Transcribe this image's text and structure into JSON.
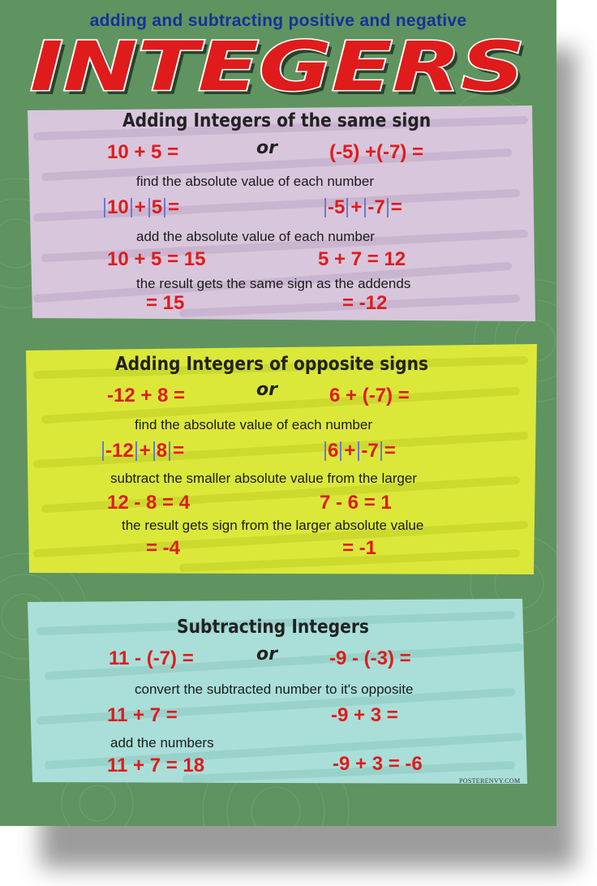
{
  "subtitle": "adding and subtracting positive and negative",
  "title": "INTEGERS",
  "credit": "POSTERENVY.COM",
  "colors": {
    "background": "#5f9460",
    "title_fill": "#e01b1b",
    "subtitle": "#1a2f9a",
    "equation": "#e01b1b",
    "panel_1": "#d8c6dc",
    "panel_2": "#dbe83a",
    "panel_3": "#a9dfd8"
  },
  "sections": [
    {
      "heading": "Adding Integers of the same sign",
      "or": "or",
      "left_problem": "10 + 5 =",
      "right_problem": "(-5)  +(-7) =",
      "step1": "find the absolute value of each number",
      "left_abs": [
        "10",
        "+",
        "5",
        "="
      ],
      "right_abs": [
        "-5",
        "+",
        "-7",
        "="
      ],
      "step2": "add the absolute value of each number",
      "left_step": "10 + 5 = 15",
      "right_step": "5 + 7 = 12",
      "step3": "the result gets the same sign as the addends",
      "left_result": "= 15",
      "right_result": "= -12"
    },
    {
      "heading": "Adding Integers of opposite signs",
      "or": "or",
      "left_problem": "-12 + 8 =",
      "right_problem": "6  + (-7) =",
      "step1": "find the absolute value of each number",
      "left_abs": [
        "-12",
        "+",
        "8",
        "="
      ],
      "right_abs": [
        "6",
        "+",
        "-7",
        "="
      ],
      "step2": "subtract the smaller absolute value from the larger",
      "left_step": "12 - 8 = 4",
      "right_step": "7 - 6 = 1",
      "step3": "the result gets sign from the larger absolute value",
      "left_result": "= -4",
      "right_result": "= -1"
    },
    {
      "heading": "Subtracting Integers",
      "or": "or",
      "left_problem": "11 - (-7) =",
      "right_problem": "-9 - (-3) =",
      "step1": "convert the subtracted number to it's opposite",
      "left_step": "11 + 7 =",
      "right_step": "-9 + 3 =",
      "step2": "add the numbers",
      "left_result": "11 + 7 = 18",
      "right_result": "-9 + 3 = -6"
    }
  ]
}
